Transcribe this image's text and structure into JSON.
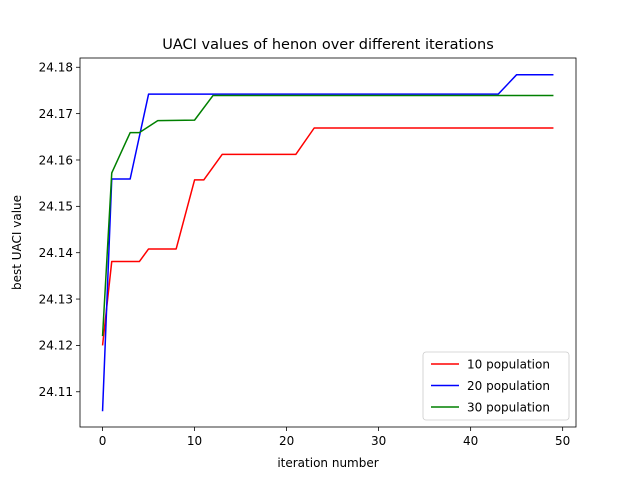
{
  "chart_data": {
    "type": "line",
    "title": "UACI values of henon over different iterations",
    "xlabel": "iteration number",
    "ylabel": "best UACI value",
    "xlim": [
      -2.45,
      51.45
    ],
    "ylim": [
      24.1024,
      24.182
    ],
    "xticks": [
      0,
      10,
      20,
      30,
      40,
      50
    ],
    "yticks": [
      24.11,
      24.12,
      24.13,
      24.14,
      24.15,
      24.16,
      24.17,
      24.18
    ],
    "ytick_labels": [
      "24.11",
      "24.12",
      "24.13",
      "24.14",
      "24.15",
      "24.16",
      "24.17",
      "24.18"
    ],
    "grid": false,
    "legend_position": "lower-right",
    "series": [
      {
        "name": "10 population",
        "color": "#ff0000",
        "points": [
          [
            0,
            24.12
          ],
          [
            1,
            24.1381
          ],
          [
            4,
            24.1381
          ],
          [
            5,
            24.1408
          ],
          [
            8,
            24.1408
          ],
          [
            10,
            24.1557
          ],
          [
            11,
            24.1557
          ],
          [
            13,
            24.1612
          ],
          [
            21,
            24.1612
          ],
          [
            23,
            24.1669
          ],
          [
            49,
            24.1669
          ]
        ]
      },
      {
        "name": "20 population",
        "color": "#0000ff",
        "points": [
          [
            0,
            24.1058
          ],
          [
            1,
            24.1559
          ],
          [
            3,
            24.1559
          ],
          [
            5,
            24.1742
          ],
          [
            43,
            24.1742
          ],
          [
            45,
            24.1784
          ],
          [
            49,
            24.1784
          ]
        ]
      },
      {
        "name": "30 population",
        "color": "#008000",
        "points": [
          [
            0,
            24.122
          ],
          [
            1,
            24.1572
          ],
          [
            3,
            24.1659
          ],
          [
            4,
            24.1659
          ],
          [
            6,
            24.1685
          ],
          [
            10,
            24.1686
          ],
          [
            12,
            24.1739
          ],
          [
            49,
            24.1739
          ]
        ]
      }
    ]
  }
}
